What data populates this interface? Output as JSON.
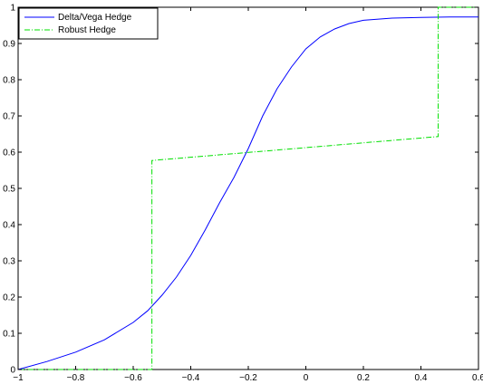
{
  "chart_data": {
    "type": "line",
    "xlim": [
      -1,
      0.6
    ],
    "ylim": [
      0,
      1
    ],
    "x_ticks": [
      -1,
      -0.8,
      -0.6,
      -0.4,
      -0.2,
      0,
      0.2,
      0.4,
      0.6
    ],
    "x_tick_labels": [
      "−1",
      "−0.8",
      "−0.6",
      "−0.4",
      "−0.2",
      "0",
      "0.2",
      "0.4",
      "0.6"
    ],
    "y_ticks": [
      0,
      0.1,
      0.2,
      0.3,
      0.4,
      0.5,
      0.6,
      0.7,
      0.8,
      0.9,
      1
    ],
    "y_tick_labels": [
      "0",
      "0.1",
      "0.2",
      "0.3",
      "0.4",
      "0.5",
      "0.6",
      "0.7",
      "0.8",
      "0.9",
      "1"
    ],
    "grid": false,
    "legend_position": "top-left",
    "series": [
      {
        "name": "Delta/Vega Hedge",
        "color": "#0000ff",
        "line_style": "solid",
        "x": [
          -1.0,
          -0.9,
          -0.8,
          -0.7,
          -0.6,
          -0.55,
          -0.5,
          -0.45,
          -0.4,
          -0.35,
          -0.3,
          -0.25,
          -0.2,
          -0.15,
          -0.1,
          -0.05,
          0.0,
          0.05,
          0.1,
          0.15,
          0.2,
          0.3,
          0.4,
          0.5,
          0.6
        ],
        "y": [
          0.0,
          0.022,
          0.048,
          0.082,
          0.13,
          0.162,
          0.205,
          0.255,
          0.315,
          0.385,
          0.46,
          0.53,
          0.61,
          0.7,
          0.775,
          0.835,
          0.885,
          0.918,
          0.94,
          0.955,
          0.964,
          0.97,
          0.972,
          0.973,
          0.973
        ]
      },
      {
        "name": "Robust Hedge",
        "color": "#00e000",
        "line_style": "dash-dot",
        "x": [
          -1.0,
          -0.535,
          -0.535,
          -0.535,
          0.46,
          0.46,
          0.46,
          0.6
        ],
        "y": [
          0.0,
          0.0,
          0.0,
          0.577,
          0.643,
          0.643,
          1.0,
          1.0
        ]
      }
    ]
  }
}
